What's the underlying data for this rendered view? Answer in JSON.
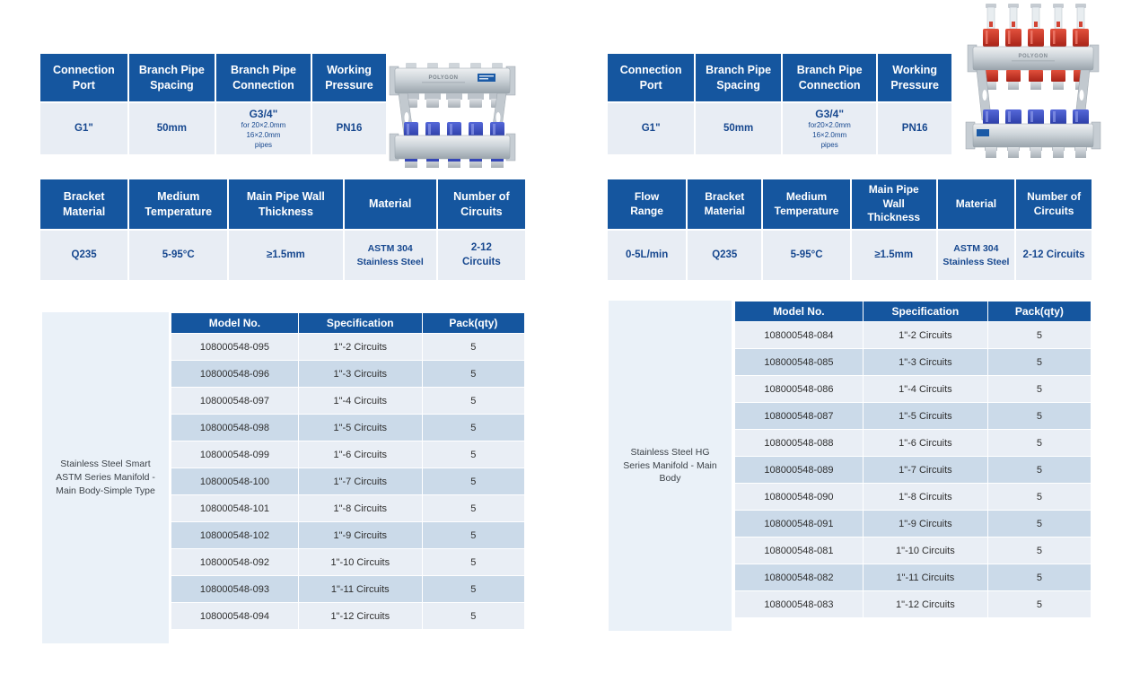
{
  "colors": {
    "header_blue": "#15569F",
    "row_light": "#E9EEF5",
    "row_dark": "#CBDAE9",
    "panel_bg": "#EAF1F8",
    "value_blue": "#17488F"
  },
  "left": {
    "product_brand": "POLYGON",
    "spec_connection": {
      "headers": [
        "Connection Port",
        "Branch Pipe Spacing",
        "Branch Pipe Connection",
        "Working Pressure"
      ],
      "values": {
        "connection_port": "G1\"",
        "branch_pipe_spacing": "50mm",
        "branch_pipe_connection": {
          "main": "G3/4\"",
          "sub": [
            "for 20×2.0mm",
            "16×2.0mm",
            "pipes"
          ]
        },
        "working_pressure": "PN16"
      }
    },
    "spec_material": {
      "headers": [
        "Bracket Material",
        "Medium Temperature",
        "Main Pipe Wall Thickness",
        "Material",
        "Number of Circuits"
      ],
      "values": {
        "bracket_material": "Q235",
        "medium_temperature": "5-95°C",
        "main_pipe_wall_thickness": "≥1.5mm",
        "material_lines": [
          "ASTM 304",
          "Stainless Steel"
        ],
        "number_of_circuits_lines": [
          "2-12",
          "Circuits"
        ]
      }
    },
    "product_name": "Stainless Steel Smart ASTM Series Manifold - Main Body-Simple Type",
    "model_table": {
      "headers": [
        "Model No.",
        "Specification",
        "Pack(qty)"
      ],
      "rows": [
        [
          "108000548-095",
          "1\"-2 Circuits",
          "5"
        ],
        [
          "108000548-096",
          "1\"-3 Circuits",
          "5"
        ],
        [
          "108000548-097",
          "1\"-4 Circuits",
          "5"
        ],
        [
          "108000548-098",
          "1\"-5 Circuits",
          "5"
        ],
        [
          "108000548-099",
          "1\"-6 Circuits",
          "5"
        ],
        [
          "108000548-100",
          "1\"-7 Circuits",
          "5"
        ],
        [
          "108000548-101",
          "1\"-8 Circuits",
          "5"
        ],
        [
          "108000548-102",
          "1\"-9 Circuits",
          "5"
        ],
        [
          "108000548-092",
          "1\"-10 Circuits",
          "5"
        ],
        [
          "108000548-093",
          "1\"-11 Circuits",
          "5"
        ],
        [
          "108000548-094",
          "1\"-12 Circuits",
          "5"
        ]
      ]
    }
  },
  "right": {
    "product_brand": "POLYGON",
    "spec_connection": {
      "headers": [
        "Connection Port",
        "Branch Pipe Spacing",
        "Branch Pipe Connection",
        "Working Pressure"
      ],
      "values": {
        "connection_port": "G1\"",
        "branch_pipe_spacing": "50mm",
        "branch_pipe_connection": {
          "main": "G3/4\"",
          "sub": [
            "for20×2.0mm",
            "16×2.0mm",
            "pipes"
          ]
        },
        "working_pressure": "PN16"
      }
    },
    "spec_material": {
      "headers": [
        "Flow Range",
        "Bracket Material",
        "Medium Temperature",
        "Main Pipe Wall Thickness",
        "Material",
        "Number of Circuits"
      ],
      "values": {
        "flow_range": "0-5L/min",
        "bracket_material": "Q235",
        "medium_temperature": "5-95°C",
        "main_pipe_wall_thickness": "≥1.5mm",
        "material_lines": [
          "ASTM 304",
          "Stainless Steel"
        ],
        "number_of_circuits": "2-12 Circuits"
      }
    },
    "product_name": "Stainless Steel HG Series Manifold - Main Body",
    "model_table": {
      "headers": [
        "Model No.",
        "Specification",
        "Pack(qty)"
      ],
      "rows": [
        [
          "108000548-084",
          "1\"-2 Circuits",
          "5"
        ],
        [
          "108000548-085",
          "1\"-3 Circuits",
          "5"
        ],
        [
          "108000548-086",
          "1\"-4 Circuits",
          "5"
        ],
        [
          "108000548-087",
          "1\"-5 Circuits",
          "5"
        ],
        [
          "108000548-088",
          "1\"-6 Circuits",
          "5"
        ],
        [
          "108000548-089",
          "1\"-7 Circuits",
          "5"
        ],
        [
          "108000548-090",
          "1\"-8 Circuits",
          "5"
        ],
        [
          "108000548-091",
          "1\"-9 Circuits",
          "5"
        ],
        [
          "108000548-081",
          "1\"-10 Circuits",
          "5"
        ],
        [
          "108000548-082",
          "1\"-11 Circuits",
          "5"
        ],
        [
          "108000548-083",
          "1\"-12 Circuits",
          "5"
        ]
      ]
    }
  }
}
